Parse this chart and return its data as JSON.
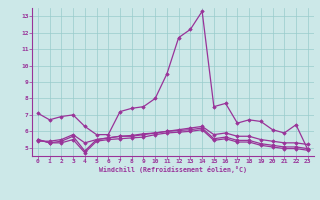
{
  "xlabel": "Windchill (Refroidissement éolien,°C)",
  "ylabel": "",
  "bg_color": "#cce8e8",
  "line_color": "#993399",
  "grid_color": "#99cccc",
  "xlim": [
    -0.5,
    23.5
  ],
  "ylim": [
    4.5,
    13.5
  ],
  "yticks": [
    5,
    6,
    7,
    8,
    9,
    10,
    11,
    12,
    13
  ],
  "xticks": [
    0,
    1,
    2,
    3,
    4,
    5,
    6,
    7,
    8,
    9,
    10,
    11,
    12,
    13,
    14,
    15,
    16,
    17,
    18,
    19,
    20,
    21,
    22,
    23
  ],
  "series": [
    [
      7.1,
      6.7,
      6.9,
      7.0,
      6.3,
      5.8,
      5.8,
      7.2,
      7.4,
      7.5,
      8.0,
      9.5,
      11.7,
      12.2,
      13.3,
      7.5,
      7.7,
      6.5,
      6.7,
      6.6,
      6.1,
      5.9,
      6.4,
      4.9
    ],
    [
      5.4,
      5.4,
      5.5,
      5.8,
      5.3,
      5.5,
      5.6,
      5.7,
      5.7,
      5.8,
      5.9,
      6.0,
      6.1,
      6.2,
      6.3,
      5.8,
      5.9,
      5.7,
      5.7,
      5.5,
      5.4,
      5.3,
      5.3,
      5.2
    ],
    [
      5.5,
      5.3,
      5.4,
      5.7,
      4.8,
      5.5,
      5.6,
      5.7,
      5.75,
      5.85,
      5.9,
      6.0,
      6.05,
      6.1,
      6.2,
      5.55,
      5.65,
      5.45,
      5.45,
      5.25,
      5.15,
      5.05,
      5.05,
      4.95
    ],
    [
      5.5,
      5.3,
      5.3,
      5.5,
      4.7,
      5.4,
      5.5,
      5.55,
      5.6,
      5.65,
      5.8,
      5.9,
      5.95,
      6.0,
      6.1,
      5.45,
      5.55,
      5.35,
      5.35,
      5.15,
      5.05,
      4.95,
      4.95,
      4.85
    ]
  ]
}
